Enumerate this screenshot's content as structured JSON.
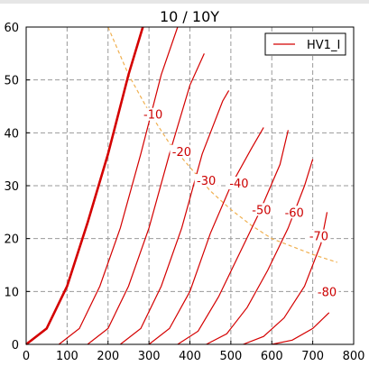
{
  "chart_data": {
    "type": "line",
    "title": "10 / 10Y",
    "xlabel": "",
    "ylabel": "",
    "xlim": [
      0,
      800
    ],
    "ylim": [
      0,
      60
    ],
    "xticks": [
      0,
      100,
      200,
      300,
      400,
      500,
      600,
      700,
      800
    ],
    "yticks": [
      0,
      10,
      20,
      30,
      40,
      50,
      60
    ],
    "grid": true,
    "legend": {
      "position": "top-right",
      "entries": [
        "HV1_I"
      ]
    },
    "series": [
      {
        "name": "HV1_I",
        "curve_label": "",
        "bold": true,
        "x": [
          0,
          50,
          100,
          150,
          200,
          250,
          285
        ],
        "y": [
          0,
          3,
          11,
          23,
          36,
          51,
          60
        ]
      },
      {
        "curve_label": "-10",
        "bold": false,
        "x": [
          80,
          130,
          180,
          230,
          280,
          330,
          370
        ],
        "y": [
          0,
          3,
          11,
          22,
          36,
          51,
          60
        ]
      },
      {
        "curve_label": "-20",
        "bold": false,
        "x": [
          150,
          200,
          250,
          300,
          350,
          400,
          435
        ],
        "y": [
          0,
          3,
          11,
          22,
          36,
          49,
          55
        ]
      },
      {
        "curve_label": "-30",
        "bold": false,
        "x": [
          230,
          280,
          330,
          380,
          430,
          480,
          495
        ],
        "y": [
          0,
          3,
          11,
          22,
          36,
          46,
          48
        ]
      },
      {
        "curve_label": "-40",
        "bold": false,
        "x": [
          300,
          350,
          400,
          450,
          500,
          550,
          580
        ],
        "y": [
          0,
          3,
          10,
          21,
          30,
          37,
          41
        ]
      },
      {
        "curve_label": "-50",
        "bold": false,
        "x": [
          370,
          420,
          470,
          520,
          570,
          620,
          640
        ],
        "y": [
          0,
          2.5,
          9,
          17,
          25,
          34,
          40.5
        ]
      },
      {
        "curve_label": "-60",
        "bold": false,
        "x": [
          440,
          490,
          540,
          590,
          640,
          680,
          700
        ],
        "y": [
          0,
          2,
          7,
          14,
          22,
          30,
          35
        ]
      },
      {
        "curve_label": "-70",
        "bold": false,
        "x": [
          530,
          580,
          630,
          680,
          720,
          735
        ],
        "y": [
          0,
          1.5,
          5,
          11,
          19,
          25
        ]
      },
      {
        "curve_label": "-80",
        "bold": false,
        "x": [
          600,
          650,
          700,
          740
        ],
        "y": [
          0,
          0.8,
          3,
          6
        ]
      }
    ],
    "label_positions": [
      {
        "text": "-10",
        "x": 310,
        "y": 43
      },
      {
        "text": "-20",
        "x": 380,
        "y": 36
      },
      {
        "text": "-30",
        "x": 440,
        "y": 30.5
      },
      {
        "text": "-40",
        "x": 520,
        "y": 30
      },
      {
        "text": "-50",
        "x": 575,
        "y": 25
      },
      {
        "text": "-60",
        "x": 655,
        "y": 24.5
      },
      {
        "text": "-70",
        "x": 715,
        "y": 20
      },
      {
        "text": "-80",
        "x": 735,
        "y": 9.5
      }
    ],
    "load_line": {
      "color": "#f0b050",
      "x": [
        200,
        250,
        300,
        350,
        400,
        450,
        500,
        550,
        600,
        650,
        700,
        760
      ],
      "y": [
        60,
        51,
        44,
        38,
        33.5,
        29,
        25.5,
        22.5,
        20,
        18.5,
        17,
        15.5
      ]
    }
  },
  "colors": {
    "curve": "#d40000",
    "grid": "#9a9a9a",
    "load_line": "#f0b050"
  }
}
